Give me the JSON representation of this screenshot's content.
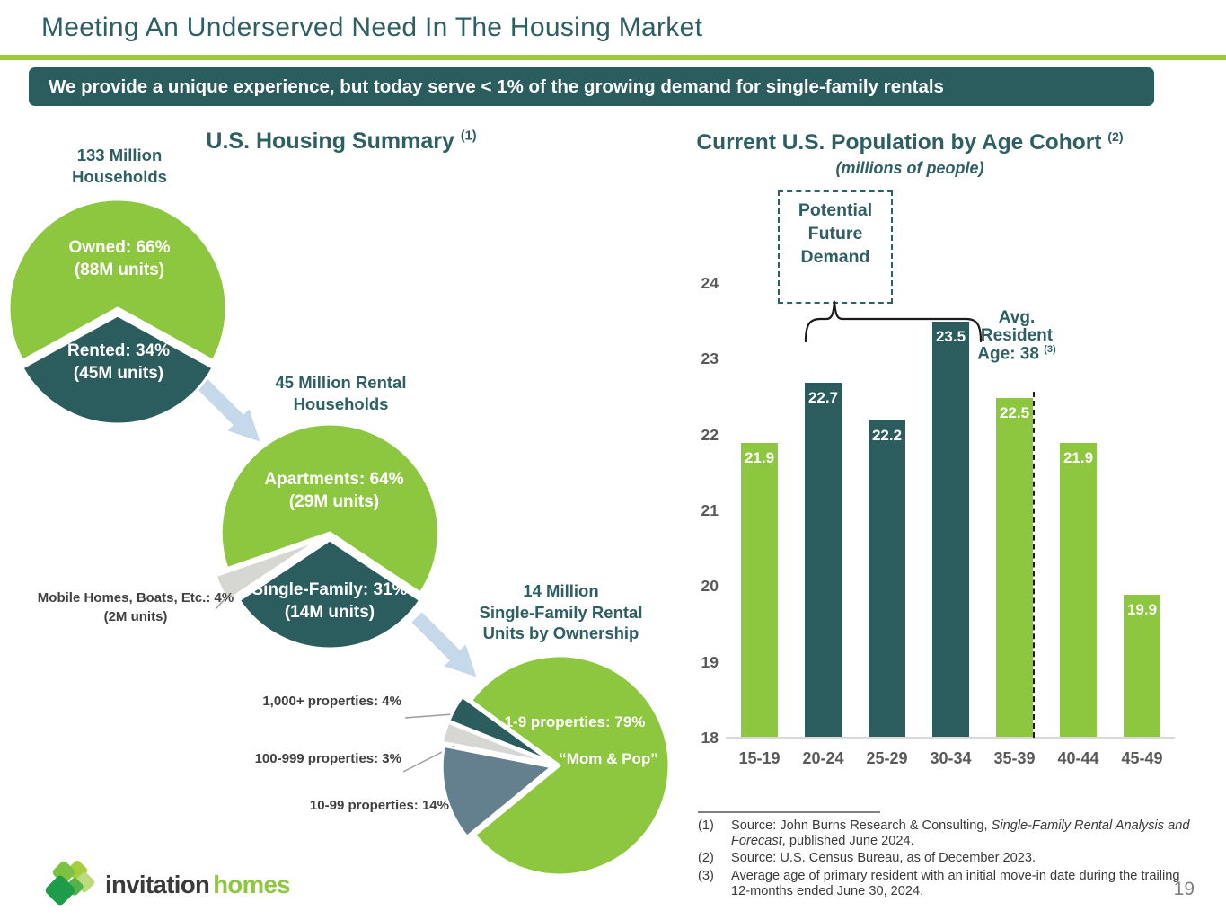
{
  "slide": {
    "title": "Meeting An Underserved Need In The Housing Market",
    "banner": "We provide a unique experience, but today serve < 1% of the growing demand for single-family rentals",
    "page_number": "19",
    "logo": {
      "part1": "invitation",
      "part2": "homes"
    }
  },
  "housing_summary": {
    "title": "U.S. Housing Summary",
    "title_sup": "(1)"
  },
  "population": {
    "title": "Current U.S. Population by Age Cohort",
    "title_sup": "(2)",
    "subtitle": "(millions of people)",
    "demand_box": [
      "Potential",
      "Future",
      "Demand"
    ],
    "avg_resident": {
      "line1": "Avg.",
      "line2": "Resident",
      "line3": "Age: 38",
      "sup": "(3)"
    }
  },
  "colors": {
    "green": "#8DC63F",
    "teal": "#2B5C5E",
    "slate": "#64808E",
    "light_gray": "#D6D6D3",
    "arrow_blue": "#C5D9EA",
    "title_teal": "#2E5F63"
  },
  "chart_data": [
    {
      "id": "households_pie",
      "type": "pie",
      "title": "133 Million Households",
      "title_lines": [
        "133 Million",
        "Households"
      ],
      "slices": [
        {
          "label": "Owned: 66%",
          "sublabel": "(88M units)",
          "value": 66,
          "color_key": "green"
        },
        {
          "label": "Rented: 34%",
          "sublabel": "(45M units)",
          "value": 34,
          "color_key": "teal"
        }
      ]
    },
    {
      "id": "rental_pie",
      "type": "pie",
      "title": "45 Million Rental Households",
      "title_lines": [
        "45 Million Rental",
        "Households"
      ],
      "slices": [
        {
          "label": "Apartments: 64%",
          "sublabel": "(29M units)",
          "value": 64,
          "color_key": "green"
        },
        {
          "label": "Single-Family: 31%",
          "sublabel": "(14M units)",
          "value": 31,
          "color_key": "teal"
        },
        {
          "label": "Mobile Homes, Boats, Etc.: 4%",
          "sublabel": "(2M units)",
          "value": 4,
          "color_key": "light_gray",
          "label_outside": true
        }
      ]
    },
    {
      "id": "ownership_pie",
      "type": "pie",
      "title": "14 Million Single-Family Rental Units by Ownership",
      "title_lines": [
        "14 Million",
        "Single-Family Rental",
        "Units by Ownership"
      ],
      "slices": [
        {
          "label": "1-9 properties: 79%",
          "sublabel": "“Mom & Pop”",
          "value": 79,
          "color_key": "green"
        },
        {
          "label": "10-99 properties: 14%",
          "value": 14,
          "color_key": "slate",
          "label_outside": true
        },
        {
          "label": "100-999 properties: 3%",
          "value": 3,
          "color_key": "light_gray",
          "label_outside": true
        },
        {
          "label": "1,000+ properties: 4%",
          "value": 4,
          "color_key": "teal",
          "label_outside": true
        }
      ]
    },
    {
      "id": "age_cohort_bar",
      "type": "bar",
      "title": "Current U.S. Population by Age Cohort",
      "subtitle": "(millions of people)",
      "categories": [
        "15-19",
        "20-24",
        "25-29",
        "30-34",
        "35-39",
        "40-44",
        "45-49"
      ],
      "values": [
        21.9,
        22.7,
        22.2,
        23.5,
        22.5,
        21.9,
        19.9
      ],
      "bar_colors": [
        "green",
        "teal",
        "teal",
        "teal",
        "green",
        "green",
        "green"
      ],
      "ylim": [
        18,
        24
      ],
      "yticks": [
        18,
        19,
        20,
        21,
        22,
        23,
        24
      ],
      "annotations": {
        "demand_box": "Potential Future Demand",
        "brace_span": [
          "20-24",
          "30-34"
        ],
        "avg_resident_age": "Avg. Resident Age: 38",
        "avg_resident_sup": "(3)",
        "dashed_line_at_age": 38
      }
    }
  ],
  "footnotes": [
    {
      "num": "(1)",
      "segments": [
        {
          "text": "Source: John Burns Research & Consulting, "
        },
        {
          "text": "Single-Family Rental Analysis and Forecast",
          "italic": true
        },
        {
          "text": ", published June 2024."
        }
      ]
    },
    {
      "num": "(2)",
      "segments": [
        {
          "text": "Source: U.S. Census Bureau, as of December 2023."
        }
      ]
    },
    {
      "num": "(3)",
      "segments": [
        {
          "text": "Average age of primary resident with an initial move-in date during the trailing 12-months ended June 30, 2024."
        }
      ]
    }
  ]
}
